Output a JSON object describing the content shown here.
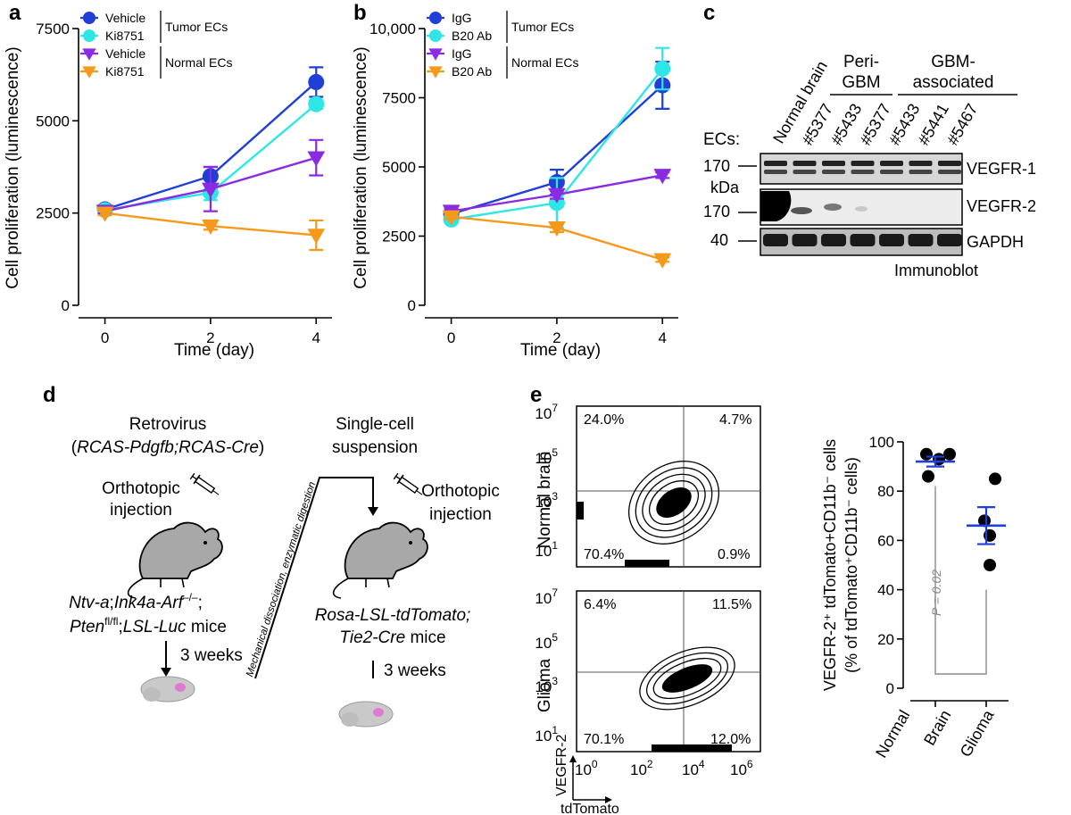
{
  "panel_labels": {
    "a": "a",
    "b": "b",
    "c": "c",
    "d": "d",
    "e": "e"
  },
  "chart_data": [
    {
      "id": "a",
      "type": "line",
      "title": "",
      "xlabel": "Time (day)",
      "ylabel": "Cell proliferation (luminescence)",
      "x": [
        0,
        2,
        4
      ],
      "xlim": [
        -0.5,
        4.3
      ],
      "ylim": [
        0,
        7500
      ],
      "yticks": [
        "0",
        "2500",
        "5000",
        "7500"
      ],
      "ytick_values": [
        0,
        2500,
        5000,
        7500
      ],
      "xticks": [
        "0",
        "2",
        "4"
      ],
      "grid": false,
      "legend": "top-left",
      "legend_groups": [
        {
          "label": "Tumor ECs",
          "series": [
            0,
            1
          ]
        },
        {
          "label": "Normal ECs",
          "series": [
            2,
            3
          ]
        }
      ],
      "series": [
        {
          "name": "Vehicle",
          "color": "#1f3fd6",
          "marker": "circle",
          "values": [
            2600,
            3500,
            6050
          ],
          "err": [
            80,
            250,
            400
          ]
        },
        {
          "name": "Ki8751",
          "color": "#2ee6e6",
          "marker": "circle",
          "values": [
            2580,
            3050,
            5450
          ],
          "err": [
            60,
            200,
            120
          ]
        },
        {
          "name": "Vehicle",
          "color": "#8a2be2",
          "marker": "triangle-down",
          "values": [
            2550,
            3150,
            4000
          ],
          "err": [
            60,
            600,
            480
          ]
        },
        {
          "name": "Ki8751",
          "color": "#f6991a",
          "marker": "triangle-down",
          "values": [
            2500,
            2150,
            1900
          ],
          "err": [
            60,
            100,
            400
          ]
        }
      ]
    },
    {
      "id": "b",
      "type": "line",
      "title": "",
      "xlabel": "Time (day)",
      "ylabel": "Cell proliferation (luminescence)",
      "x": [
        0,
        2,
        4
      ],
      "xlim": [
        -0.5,
        4.3
      ],
      "ylim": [
        0,
        10000
      ],
      "yticks": [
        "0",
        "2500",
        "5000",
        "7500",
        "10,000"
      ],
      "ytick_values": [
        0,
        2500,
        5000,
        7500,
        10000
      ],
      "xticks": [
        "0",
        "2",
        "4"
      ],
      "grid": false,
      "legend": "top-left",
      "legend_groups": [
        {
          "label": "Tumor ECs",
          "series": [
            0,
            1
          ]
        },
        {
          "label": "Normal ECs",
          "series": [
            2,
            3
          ]
        }
      ],
      "series": [
        {
          "name": "IgG",
          "color": "#1f3fd6",
          "marker": "circle",
          "values": [
            3300,
            4450,
            7950
          ],
          "err": [
            100,
            450,
            850
          ]
        },
        {
          "name": "B20 Ab",
          "color": "#2ee6e6",
          "marker": "circle",
          "values": [
            3100,
            3700,
            8550
          ],
          "err": [
            100,
            900,
            750
          ]
        },
        {
          "name": "IgG",
          "color": "#8a2be2",
          "marker": "triangle-down",
          "values": [
            3400,
            4000,
            4700
          ],
          "err": [
            80,
            150,
            100
          ]
        },
        {
          "name": "B20 Ab",
          "color": "#f6991a",
          "marker": "triangle-down",
          "values": [
            3200,
            2800,
            1650
          ],
          "err": [
            80,
            150,
            80
          ]
        }
      ]
    },
    {
      "id": "e-scatter",
      "type": "scatter",
      "ylabel_line1": "VEGFR-2⁺ tdTomato+CD11b⁻ cells",
      "ylabel_line2": "(% of tdTomato⁺CD11b⁻ cells)",
      "categories": [
        "Normal Brain",
        "Glioma"
      ],
      "xtick_labels": [
        "Normal",
        "Brain",
        "Glioma"
      ],
      "ylim": [
        0,
        100
      ],
      "yticks": [
        "0",
        "20",
        "40",
        "60",
        "80",
        "100"
      ],
      "ytick_values": [
        0,
        20,
        40,
        60,
        80,
        100
      ],
      "groups": [
        {
          "name": "Normal Brain",
          "points": [
            95,
            93,
            95,
            86
          ],
          "mean": 92,
          "sem": 2
        },
        {
          "name": "Glioma",
          "points": [
            85,
            68,
            62,
            50
          ],
          "mean": 66,
          "sem": 7.5
        }
      ],
      "annotation": "P = 0.02"
    }
  ],
  "blot": {
    "group_peri": "Peri-\nGBM",
    "group_peri_l1": "Peri-",
    "group_peri_l2": "GBM",
    "group_gbm_l1": "GBM-",
    "group_gbm_l2": "associated",
    "ecs_label": "ECs:",
    "lanes": [
      "Normal brain",
      "#5377",
      "#5433",
      "#5377",
      "#5433",
      "#5441",
      "#5467"
    ],
    "kda": "kDa",
    "markers": [
      "170",
      "170",
      "40"
    ],
    "rows": [
      "VEGFR-1",
      "VEGFR-2",
      "GAPDH"
    ],
    "footer": "Immunoblot"
  },
  "schematic": {
    "retrovirus": "Retrovirus",
    "retro_open": "(",
    "retro_constructs": "RCAS-Pdgfb;RCAS-Cre",
    "retro_close": ")",
    "orthotopic1": "Orthotopic",
    "injection1": "injection",
    "mouse1_l1a": "Ntv-a",
    "mouse1_l1b": ";",
    "mouse1_l1c": "Ink4a-Arf",
    "mouse1_l1sup": "–/–",
    "mouse1_l1d": ";",
    "mouse1_l2a": "Pten",
    "mouse1_l2sup": "fl/fl",
    "mouse1_l2b": ";",
    "mouse1_l2c": "LSL-Luc",
    "mouse1_l2d": " mice",
    "weeks1": "3 weeks",
    "single_cell1": "Single-cell",
    "single_cell2": "suspension",
    "dissociation": "Mechanical dissociation, enzymatic digestion",
    "orthotopic2": "Orthotopic",
    "injection2": "injection",
    "mouse2_l1": "Rosa-LSL-tdTomato;",
    "mouse2_l2": "Tie2-Cre mice",
    "weeks2": "3 weeks"
  },
  "flow": {
    "row_labels": [
      "Normal brain",
      "Glioma"
    ],
    "normal_quadrants": [
      "24.0%",
      "4.7%",
      "70.4%",
      "0.9%"
    ],
    "glioma_quadrants": [
      "6.4%",
      "11.5%",
      "70.1%",
      "12.0%"
    ],
    "y_ticks": [
      "10",
      "10",
      "10",
      "10"
    ],
    "y_exps": [
      "7",
      "5",
      "3",
      "1"
    ],
    "x_ticks": [
      "10",
      "10",
      "10",
      "10"
    ],
    "x_exps": [
      "0",
      "2",
      "4",
      "6"
    ],
    "y_axis_label": "VEGFR-2",
    "x_axis_label": "tdTomato"
  }
}
